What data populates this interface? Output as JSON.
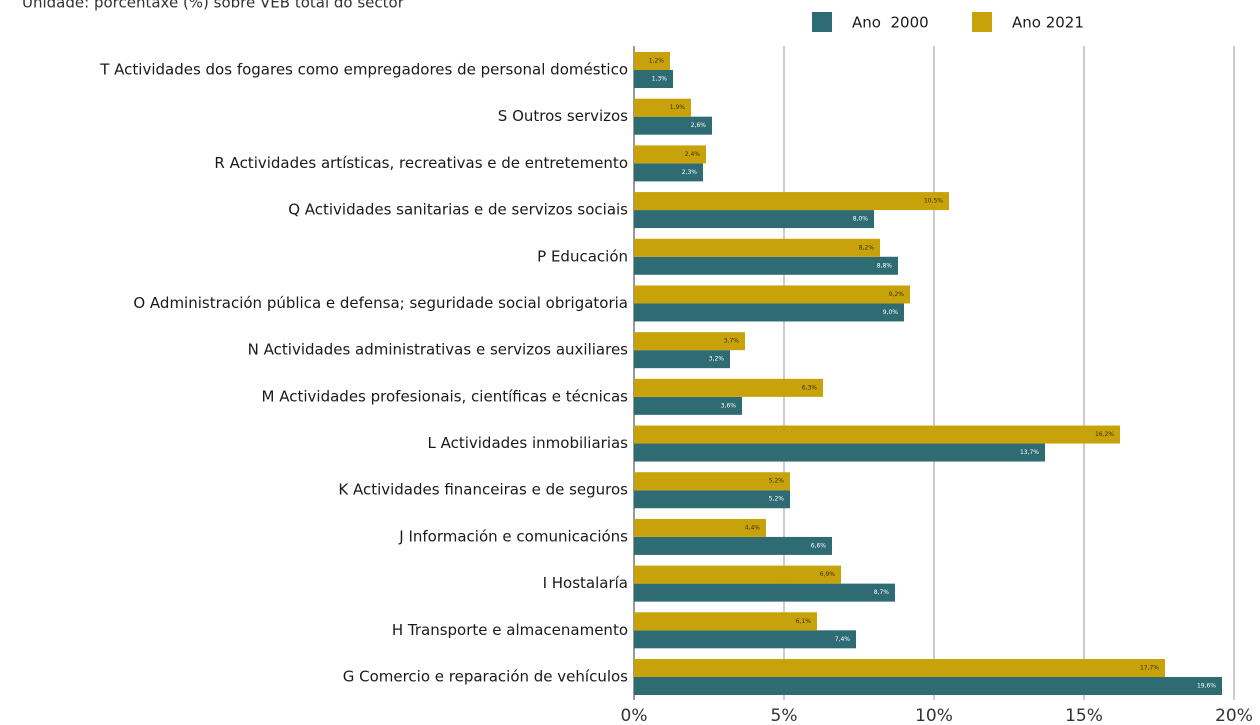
{
  "chart_data": {
    "type": "bar",
    "orientation": "horizontal",
    "subtitle": "Unidade: porcentaxe (%) sobre VEB total do sector",
    "categories": [
      "T Actividades dos fogares como empregadores de personal doméstico",
      "S Outros servizos",
      "R Actividades artísticas, recreativas e de entretemento",
      "Q Actividades sanitarias e de servizos sociais",
      "P Educación",
      "O Administración pública e defensa; seguridade social obrigatoria",
      "N Actividades administrativas e servizos auxiliares",
      "M Actividades profesionais, científicas e técnicas",
      "L Actividades inmobiliarias",
      "K Actividades financeiras e de seguros",
      "J Información e comunicacións",
      "I Hostalaría",
      "H Transporte e almacenamento",
      "G Comercio e reparación de vehículos"
    ],
    "series": [
      {
        "name": "Ano  2000",
        "color": "#2e6b72",
        "values": [
          1.3,
          2.6,
          2.3,
          8.0,
          8.8,
          9.0,
          3.2,
          3.6,
          13.7,
          5.2,
          6.6,
          8.7,
          7.4,
          19.6
        ],
        "value_labels": [
          "1,3%",
          "2,6%",
          "2,3%",
          "8,0%",
          "8,8%",
          "9,0%",
          "3,2%",
          "3,6%",
          "13,7%",
          "5,2%",
          "6,6%",
          "8,7%",
          "7,4%",
          "19,6%"
        ]
      },
      {
        "name": "Ano 2021",
        "color": "#c8a20a",
        "values": [
          1.2,
          1.9,
          2.4,
          10.5,
          8.2,
          9.2,
          3.7,
          6.3,
          16.2,
          5.2,
          4.4,
          6.9,
          6.1,
          17.7
        ],
        "value_labels": [
          "1,2%",
          "1,9%",
          "2,4%",
          "10,5%",
          "8,2%",
          "9,2%",
          "3,7%",
          "6,3%",
          "16,2%",
          "5,2%",
          "4,4%",
          "6,9%",
          "6,1%",
          "17,7%"
        ]
      }
    ],
    "xlim": [
      0,
      20
    ],
    "xticks": [
      {
        "value": 0,
        "label": "0%"
      },
      {
        "value": 5,
        "label": "5%"
      },
      {
        "value": 10,
        "label": "10%"
      },
      {
        "value": 15,
        "label": "15%"
      },
      {
        "value": 20,
        "label": "20%"
      }
    ],
    "grid": true,
    "legend": "top"
  }
}
